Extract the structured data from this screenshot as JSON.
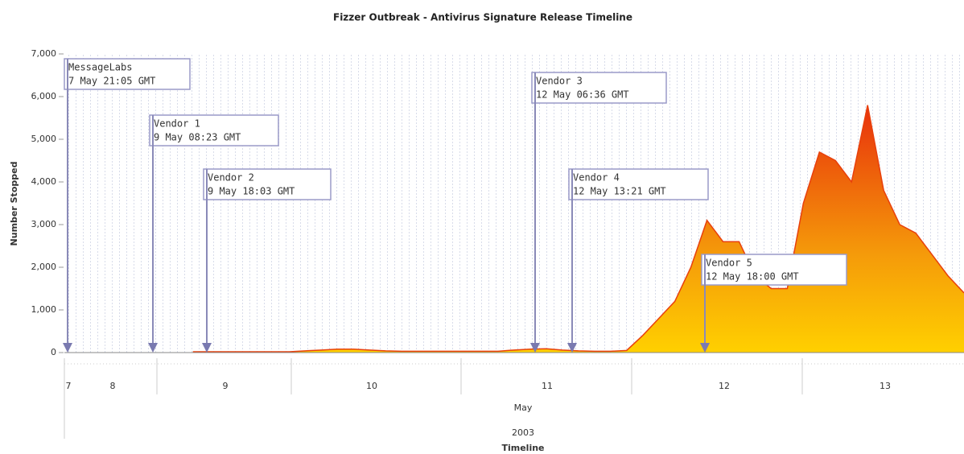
{
  "chart_data": {
    "type": "area",
    "title": "Fizzer Outbreak - Antivirus Signature Release Timeline",
    "ylabel": "Number Stopped",
    "xlabel_month": "May",
    "xlabel_year": "2003",
    "xlabel": "Timeline",
    "categories": [
      "7",
      null,
      null,
      "8",
      null,
      null,
      null,
      null,
      null,
      null,
      "9",
      null,
      null,
      null,
      null,
      null,
      null,
      null,
      null,
      "10",
      null,
      null,
      null,
      null,
      null,
      null,
      null,
      null,
      null,
      null,
      "11",
      null,
      null,
      null,
      null,
      null,
      null,
      null,
      null,
      null,
      null,
      "12",
      null,
      null,
      null,
      null,
      null,
      null,
      null,
      null,
      null,
      "13",
      null,
      null,
      null,
      null,
      null
    ],
    "series": [
      {
        "name": "Number Stopped",
        "color": "#e8400c",
        "values": [
          null,
          null,
          null,
          null,
          null,
          null,
          null,
          null,
          20,
          20,
          20,
          20,
          20,
          20,
          20,
          40,
          60,
          80,
          80,
          60,
          40,
          30,
          30,
          30,
          30,
          30,
          30,
          30,
          60,
          80,
          90,
          60,
          40,
          30,
          30,
          50,
          400,
          800,
          1200,
          2000,
          3100,
          2600,
          2600,
          1800,
          1500,
          1500,
          3500,
          4700,
          4500,
          4000,
          5800,
          3800,
          3000,
          2800,
          2300,
          1800,
          1400
        ]
      }
    ],
    "ylim": [
      0,
      7000
    ],
    "yticks": [
      0,
      {
        "value": 1000,
        "label": "1,000"
      },
      {
        "value": 2000,
        "label": "2,000"
      },
      {
        "value": 3000,
        "label": "3,000"
      },
      {
        "value": 4000,
        "label": "4,000"
      },
      {
        "value": 5000,
        "label": "5,000"
      },
      {
        "value": 6000,
        "label": "6,000"
      },
      {
        "value": 7000,
        "label": "7,000"
      }
    ],
    "grid": false,
    "annotations": [
      {
        "label": "MessageLabs",
        "time": "7 May 21:05 GMT"
      },
      {
        "label": "Vendor 1",
        "time": "9 May 08:23 GMT"
      },
      {
        "label": "Vendor 2",
        "time": "9 May 18:03 GMT"
      },
      {
        "label": "Vendor 3",
        "time": "12 May 06:36 GMT"
      },
      {
        "label": "Vendor 4",
        "time": "12 May 13:21 GMT"
      },
      {
        "label": "Vendor 5",
        "time": "12 May 18:00 GMT"
      }
    ]
  }
}
